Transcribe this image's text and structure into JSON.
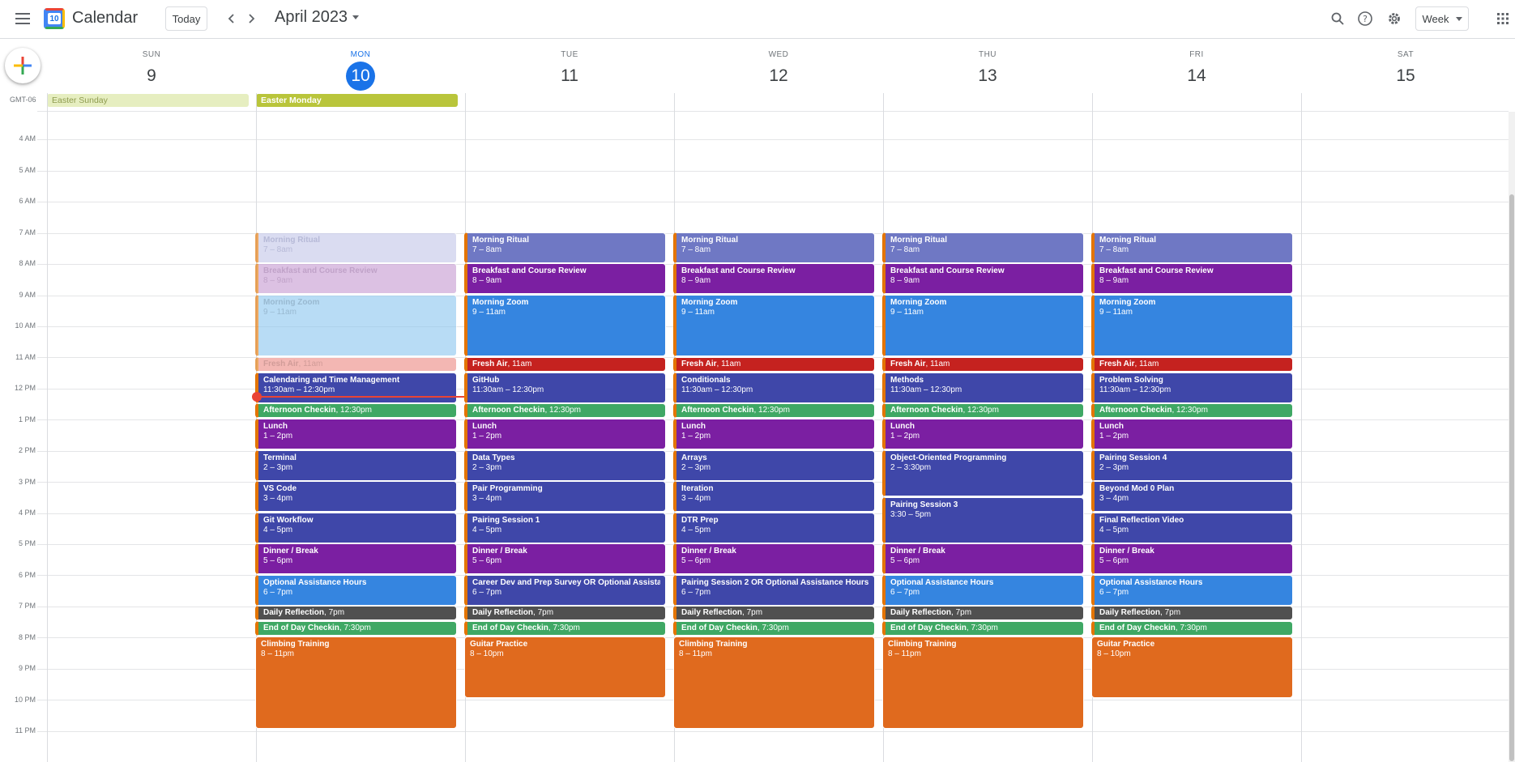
{
  "header": {
    "app_title": "Calendar",
    "logo_day": "10",
    "today_label": "Today",
    "month_label": "April 2023",
    "view_label": "Week",
    "icons": [
      "menu-icon",
      "prev-icon",
      "next-icon",
      "search-icon",
      "help-icon",
      "settings-icon",
      "apps-icon"
    ]
  },
  "timezone": "GMT-06",
  "days": [
    {
      "name": "SUN",
      "num": "9"
    },
    {
      "name": "MON",
      "num": "10"
    },
    {
      "name": "TUE",
      "num": "11"
    },
    {
      "name": "WED",
      "num": "12"
    },
    {
      "name": "THU",
      "num": "13"
    },
    {
      "name": "FRI",
      "num": "14"
    },
    {
      "name": "SAT",
      "num": "15"
    }
  ],
  "hours": [
    "4 AM",
    "5 AM",
    "6 AM",
    "7 AM",
    "8 AM",
    "9 AM",
    "10 AM",
    "11 AM",
    "12 PM",
    "1 PM",
    "2 PM",
    "3 PM",
    "4 PM",
    "5 PM",
    "6 PM",
    "7 PM",
    "8 PM",
    "9 PM",
    "10 PM",
    "11 PM"
  ],
  "all_day": [
    {
      "title": "Easter Sunday",
      "day": 0
    },
    {
      "title": "Easter Monday",
      "day": 1
    }
  ],
  "colors": {
    "lavender": "#7986cb",
    "grape": "#8e24aa",
    "blue": "#3f8de6",
    "red": "#d50000",
    "indigo": "#3f51b5",
    "green": "#33b679",
    "graphite": "#616161",
    "tangerine": "#f4511e",
    "today": "#1a73e8",
    "now": "#ea4335"
  },
  "events": {
    "mon": [
      {
        "title": "Morning Ritual",
        "time": "7 – 8am"
      },
      {
        "title": "Breakfast and Course Review",
        "time": "8 – 9am"
      },
      {
        "title": "Morning Zoom",
        "time": "9 – 11am"
      },
      {
        "title": "Fresh Air",
        "time": "11am"
      },
      {
        "title": "Calendaring and Time Management",
        "time": "11:30am – 12:30pm"
      },
      {
        "title": "Afternoon Checkin",
        "time": "12:30pm"
      },
      {
        "title": "Lunch",
        "time": "1 – 2pm"
      },
      {
        "title": "Terminal",
        "time": "2 – 3pm"
      },
      {
        "title": "VS Code",
        "time": "3 – 4pm"
      },
      {
        "title": "Git Workflow",
        "time": "4 – 5pm"
      },
      {
        "title": "Dinner / Break",
        "time": "5 – 6pm"
      },
      {
        "title": "Optional Assistance Hours",
        "time": "6 – 7pm"
      },
      {
        "title": "Daily Reflection",
        "time": "7pm"
      },
      {
        "title": "End of Day Checkin",
        "time": "7:30pm"
      },
      {
        "title": "Climbing Training",
        "time": "8 – 11pm"
      }
    ],
    "tue": [
      {
        "title": "Morning Ritual",
        "time": "7 – 8am"
      },
      {
        "title": "Breakfast and Course Review",
        "time": "8 – 9am"
      },
      {
        "title": "Morning Zoom",
        "time": "9 – 11am"
      },
      {
        "title": "Fresh Air",
        "time": "11am"
      },
      {
        "title": "GitHub",
        "time": "11:30am – 12:30pm"
      },
      {
        "title": "Afternoon Checkin",
        "time": "12:30pm"
      },
      {
        "title": "Lunch",
        "time": "1 – 2pm"
      },
      {
        "title": "Data Types",
        "time": "2 – 3pm"
      },
      {
        "title": "Pair Programming",
        "time": "3 – 4pm"
      },
      {
        "title": "Pairing Session 1",
        "time": "4 – 5pm"
      },
      {
        "title": "Dinner / Break",
        "time": "5 – 6pm"
      },
      {
        "title": "Career Dev and Prep Survey OR Optional Assistance Hours",
        "time": "6 – 7pm"
      },
      {
        "title": "Daily Reflection",
        "time": "7pm"
      },
      {
        "title": "End of Day Checkin",
        "time": "7:30pm"
      },
      {
        "title": "Guitar Practice",
        "time": "8 – 10pm"
      }
    ],
    "wed": [
      {
        "title": "Morning Ritual",
        "time": "7 – 8am"
      },
      {
        "title": "Breakfast and Course Review",
        "time": "8 – 9am"
      },
      {
        "title": "Morning Zoom",
        "time": "9 – 11am"
      },
      {
        "title": "Fresh Air",
        "time": "11am"
      },
      {
        "title": "Conditionals",
        "time": "11:30am – 12:30pm"
      },
      {
        "title": "Afternoon Checkin",
        "time": "12:30pm"
      },
      {
        "title": "Lunch",
        "time": "1 – 2pm"
      },
      {
        "title": "Arrays",
        "time": "2 – 3pm"
      },
      {
        "title": "Iteration",
        "time": "3 – 4pm"
      },
      {
        "title": "DTR Prep",
        "time": "4 – 5pm"
      },
      {
        "title": "Dinner / Break",
        "time": "5 – 6pm"
      },
      {
        "title": "Pairing Session 2 OR Optional Assistance Hours",
        "time": "6 – 7pm"
      },
      {
        "title": "Daily Reflection",
        "time": "7pm"
      },
      {
        "title": "End of Day Checkin",
        "time": "7:30pm"
      },
      {
        "title": "Climbing Training",
        "time": "8 – 11pm"
      }
    ],
    "thu": [
      {
        "title": "Morning Ritual",
        "time": "7 – 8am"
      },
      {
        "title": "Breakfast and Course Review",
        "time": "8 – 9am"
      },
      {
        "title": "Morning Zoom",
        "time": "9 – 11am"
      },
      {
        "title": "Fresh Air",
        "time": "11am"
      },
      {
        "title": "Methods",
        "time": "11:30am – 12:30pm"
      },
      {
        "title": "Afternoon Checkin",
        "time": "12:30pm"
      },
      {
        "title": "Lunch",
        "time": "1 – 2pm"
      },
      {
        "title": "Object-Oriented Programming",
        "time": "2 – 3:30pm"
      },
      {
        "title": "Pairing Session 3",
        "time": "3:30 – 5pm"
      },
      {
        "title": "Dinner / Break",
        "time": "5 – 6pm"
      },
      {
        "title": "Optional Assistance Hours",
        "time": "6 – 7pm"
      },
      {
        "title": "Daily Reflection",
        "time": "7pm"
      },
      {
        "title": "End of Day Checkin",
        "time": "7:30pm"
      },
      {
        "title": "Climbing Training",
        "time": "8 – 11pm"
      }
    ],
    "fri": [
      {
        "title": "Morning Ritual",
        "time": "7 – 8am"
      },
      {
        "title": "Breakfast and Course Review",
        "time": "8 – 9am"
      },
      {
        "title": "Morning Zoom",
        "time": "9 – 11am"
      },
      {
        "title": "Fresh Air",
        "time": "11am"
      },
      {
        "title": "Problem Solving",
        "time": "11:30am – 12:30pm"
      },
      {
        "title": "Afternoon Checkin",
        "time": "12:30pm"
      },
      {
        "title": "Lunch",
        "time": "1 – 2pm"
      },
      {
        "title": "Pairing Session 4",
        "time": "2 – 3pm"
      },
      {
        "title": "Beyond Mod 0 Plan",
        "time": "3 – 4pm"
      },
      {
        "title": "Final Reflection Video",
        "time": "4 – 5pm"
      },
      {
        "title": "Dinner / Break",
        "time": "5 – 6pm"
      },
      {
        "title": "Optional Assistance Hours",
        "time": "6 – 7pm"
      },
      {
        "title": "Daily Reflection",
        "time": "7pm"
      },
      {
        "title": "End of Day Checkin",
        "time": "7:30pm"
      },
      {
        "title": "Guitar Practice",
        "time": "8 – 10pm"
      }
    ]
  }
}
